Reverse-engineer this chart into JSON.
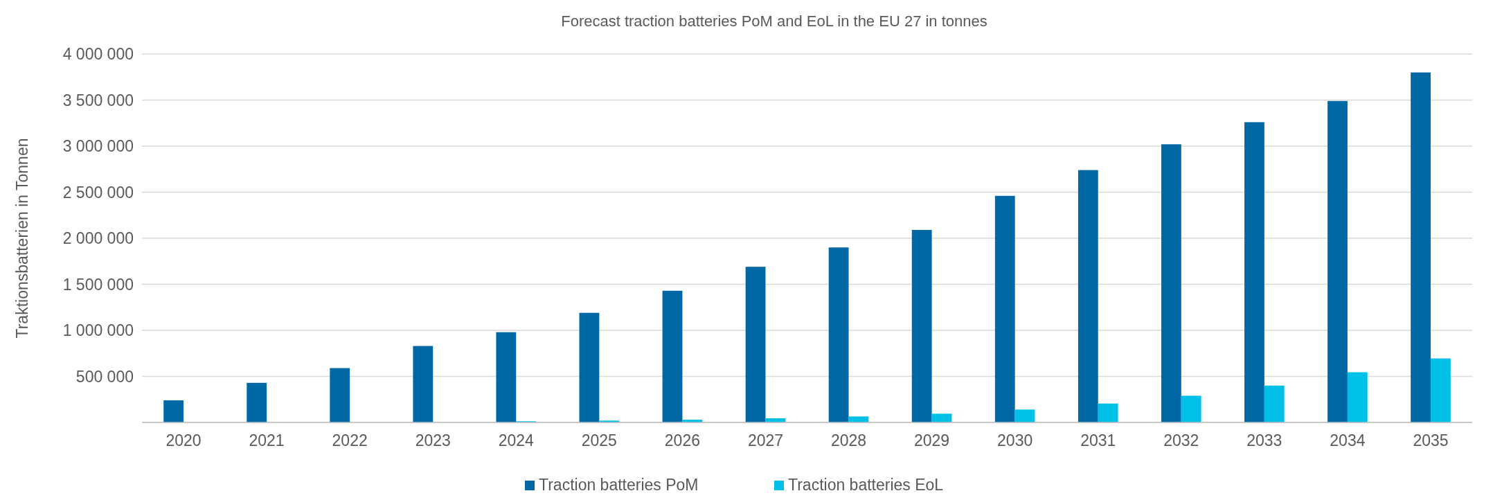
{
  "chart_data": {
    "type": "bar",
    "title": "Forecast traction batteries PoM and EoL in the EU 27 in tonnes",
    "ylabel": "Traktionsbatterien in Tonnen",
    "categories": [
      "2020",
      "2021",
      "2022",
      "2023",
      "2024",
      "2025",
      "2026",
      "2027",
      "2028",
      "2029",
      "2030",
      "2031",
      "2032",
      "2033",
      "2034",
      "2035"
    ],
    "series": [
      {
        "name": "Traction batteries PoM",
        "color": "#0069a5",
        "values": [
          240000,
          430000,
          590000,
          830000,
          980000,
          1190000,
          1430000,
          1690000,
          1900000,
          2090000,
          2460000,
          2740000,
          3020000,
          3260000,
          3490000,
          3800000
        ]
      },
      {
        "name": "Traction batteries EoL",
        "color": "#00c0e8",
        "values": [
          null,
          null,
          null,
          null,
          13000,
          20000,
          30000,
          45000,
          65000,
          95000,
          140000,
          205000,
          290000,
          400000,
          545000,
          695000
        ]
      }
    ],
    "ylim": [
      0,
      4000000
    ],
    "yticks": [
      {
        "value": 0,
        "label": null
      },
      {
        "value": 500000,
        "label": "500 000"
      },
      {
        "value": 1000000,
        "label": "1 000 000"
      },
      {
        "value": 1500000,
        "label": "1 500 000"
      },
      {
        "value": 2000000,
        "label": "2 000 000"
      },
      {
        "value": 2500000,
        "label": "2 500 000"
      },
      {
        "value": 3000000,
        "label": "3 000 000"
      },
      {
        "value": 3500000,
        "label": "3 500 000"
      },
      {
        "value": 4000000,
        "label": "4 000 000"
      }
    ],
    "grid": "y",
    "legend": "bottom"
  }
}
